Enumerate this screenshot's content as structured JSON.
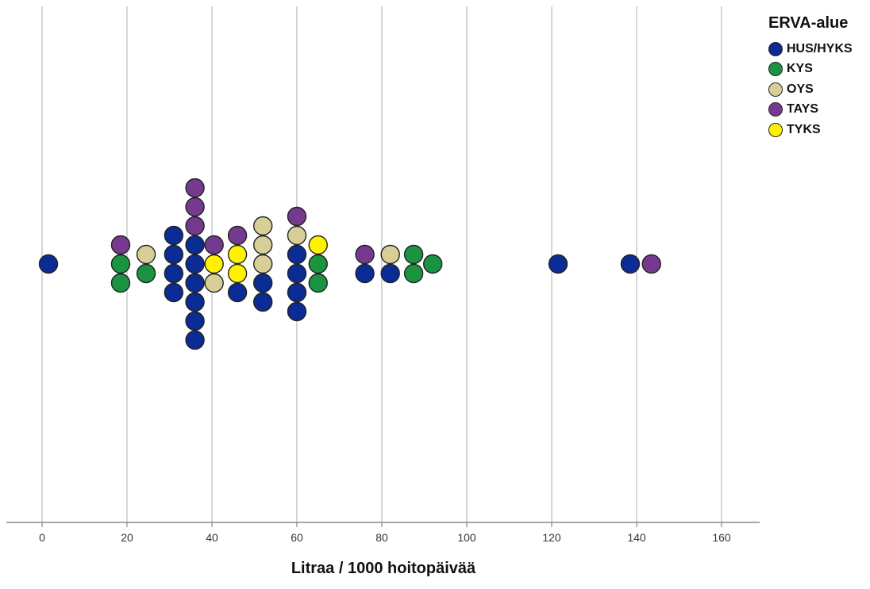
{
  "chart_data": {
    "type": "scatter",
    "subtype": "dot-plot (beeswarm)",
    "title": "",
    "xlabel": "Litraa / 1000 hoitopäivää",
    "ylabel": "",
    "xlim": [
      -8,
      168
    ],
    "xticks": [
      0,
      20,
      40,
      60,
      80,
      100,
      120,
      140,
      160
    ],
    "grid": "vertical lines at x ticks",
    "legend": {
      "title": "ERVA-alue",
      "placement": "top-right outside plot"
    },
    "series": [
      {
        "name": "HUS/HYKS",
        "color": "#0A2C94",
        "x": [
          1.5,
          31,
          31,
          31,
          31,
          36,
          36,
          36,
          36,
          36,
          36,
          46,
          52,
          52,
          60,
          60,
          60,
          60,
          76,
          82,
          121.5,
          138.5
        ]
      },
      {
        "name": "KYS",
        "color": "#1A9441",
        "x": [
          18.5,
          18.5,
          24.5,
          65,
          65,
          87.5,
          87.5,
          92
        ]
      },
      {
        "name": "OYS",
        "color": "#D8CF98",
        "x": [
          24.5,
          40.5,
          52,
          52,
          52,
          60,
          82
        ]
      },
      {
        "name": "TAYS",
        "color": "#753A8F",
        "x": [
          18.5,
          36,
          36,
          36,
          40.5,
          46,
          60,
          76,
          143.5
        ]
      },
      {
        "name": "TYKS",
        "color": "#FFF200",
        "x": [
          40.5,
          46,
          46,
          65
        ]
      }
    ]
  }
}
